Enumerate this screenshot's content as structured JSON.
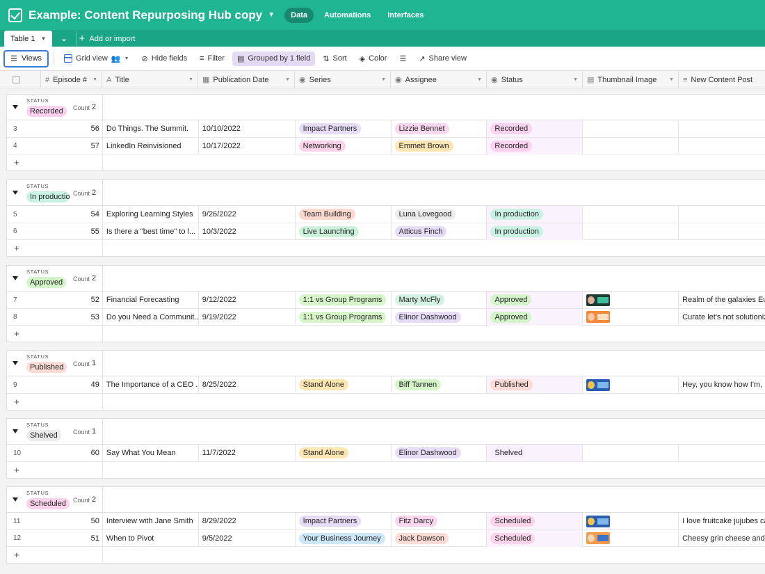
{
  "header": {
    "base_title": "Example: Content Repurposing Hub copy",
    "nav": [
      {
        "label": "Data",
        "active": true
      },
      {
        "label": "Automations",
        "active": false
      },
      {
        "label": "Interfaces",
        "active": false
      }
    ]
  },
  "tabbar": {
    "table_tab": "Table 1",
    "add_import": "Add or import"
  },
  "toolbar": {
    "views": "Views",
    "grid_view": "Grid view",
    "hide_fields": "Hide fields",
    "filter": "Filter",
    "grouped": "Grouped by 1 field",
    "sort": "Sort",
    "color": "Color",
    "share_view": "Share view"
  },
  "columns": {
    "episode": "Episode #",
    "title": "Title",
    "pub_date": "Publication Date",
    "series": "Series",
    "assignee": "Assignee",
    "status": "Status",
    "thumbnail": "Thumbnail Image",
    "new_post": "New Content Post"
  },
  "group_field_label": "STATUS",
  "count_label": "Count",
  "groups": [
    {
      "status": "Recorded",
      "count": "2",
      "color": "#fbd3f0",
      "rows": [
        {
          "idx": "3",
          "ep": "56",
          "title": "Do Things. The Summit.",
          "date": "10/10/2022",
          "series": "Impact Partners",
          "series_color": "#e6dcf6",
          "assignee": "Lizzie Bennet",
          "assignee_color": "#fad6ef",
          "status": "Recorded",
          "status_color": "#fbd3f0",
          "thumb": "",
          "post": ""
        },
        {
          "idx": "4",
          "ep": "57",
          "title": "LinkedIn Reinvisioned",
          "date": "10/17/2022",
          "series": "Networking",
          "series_color": "#fbd3ea",
          "assignee": "Emmett Brown",
          "assignee_color": "#fde6b3",
          "status": "Recorded",
          "status_color": "#fbd3f0",
          "thumb": "",
          "post": ""
        }
      ]
    },
    {
      "status": "In production",
      "count": "2",
      "color": "#c9f1e4",
      "rows": [
        {
          "idx": "5",
          "ep": "54",
          "title": "Exploring Learning Styles",
          "date": "9/26/2022",
          "series": "Team Building",
          "series_color": "#fdd8cf",
          "assignee": "Luna Lovegood",
          "assignee_color": "#ececec",
          "status": "In production",
          "status_color": "#c9f1e4",
          "thumb": "",
          "post": ""
        },
        {
          "idx": "6",
          "ep": "55",
          "title": "Is there a \"best time\" to l...",
          "date": "10/3/2022",
          "series": "Live Launching",
          "series_color": "#cdf2dc",
          "assignee": "Atticus Finch",
          "assignee_color": "#e6dcf6",
          "status": "In production",
          "status_color": "#c9f1e4",
          "thumb": "",
          "post": ""
        }
      ]
    },
    {
      "status": "Approved",
      "count": "2",
      "color": "#d3f5c9",
      "rows": [
        {
          "idx": "7",
          "ep": "52",
          "title": "Financial Forecasting",
          "date": "9/12/2022",
          "series": "1:1 vs Group Programs",
          "series_color": "#d6f5c9",
          "assignee": "Marty McFly",
          "assignee_color": "#d3f2e2",
          "status": "Approved",
          "status_color": "#d3f5c9",
          "thumb": "dark-green",
          "post": "Realm of the galaxies Euc..."
        },
        {
          "idx": "8",
          "ep": "53",
          "title": "Do you Need a Communit...",
          "date": "9/19/2022",
          "series": "1:1 vs Group Programs",
          "series_color": "#d6f5c9",
          "assignee": "Elinor Dashwood",
          "assignee_color": "#e6dcf6",
          "status": "Approved",
          "status_color": "#d3f5c9",
          "thumb": "orange",
          "post": "Curate let's not solutioniz..."
        }
      ]
    },
    {
      "status": "Published",
      "count": "1",
      "color": "#fddcd6",
      "rows": [
        {
          "idx": "9",
          "ep": "49",
          "title": "The Importance of a CEO ...",
          "date": "8/25/2022",
          "series": "Stand Alone",
          "series_color": "#fde6b3",
          "assignee": "Biff Tannen",
          "assignee_color": "#d6f5c9",
          "status": "Published",
          "status_color": "#fddcd6",
          "thumb": "blue-yellow",
          "post": "Hey, you know how I'm, li..."
        }
      ]
    },
    {
      "status": "Shelved",
      "count": "1",
      "color": "#ececec",
      "rows": [
        {
          "idx": "10",
          "ep": "60",
          "title": "Say What You Mean",
          "date": "11/7/2022",
          "series": "Stand Alone",
          "series_color": "#fde6b3",
          "assignee": "Elinor Dashwood",
          "assignee_color": "#e6dcf6",
          "status": "Shelved",
          "status_color": "#f6eefa",
          "thumb": "",
          "post": ""
        }
      ]
    },
    {
      "status": "Scheduled",
      "count": "2",
      "color": "#fbd3ea",
      "rows": [
        {
          "idx": "11",
          "ep": "50",
          "title": "Interview with Jane Smith",
          "date": "8/29/2022",
          "series": "Impact Partners",
          "series_color": "#e6dcf6",
          "assignee": "Fitz Darcy",
          "assignee_color": "#fad6ef",
          "status": "Scheduled",
          "status_color": "#fbd3ea",
          "thumb": "blue-yellow",
          "post": "I love fruitcake jujubes ca..."
        },
        {
          "idx": "12",
          "ep": "51",
          "title": "When to Pivot",
          "date": "9/5/2022",
          "series": "Your Business Journey",
          "series_color": "#cde8fb",
          "assignee": "Jack Dawson",
          "assignee_color": "#fddcd6",
          "status": "Scheduled",
          "status_color": "#fbd3ea",
          "thumb": "orange-blue",
          "post": "Cheesy grin cheese and ..."
        }
      ]
    }
  ]
}
